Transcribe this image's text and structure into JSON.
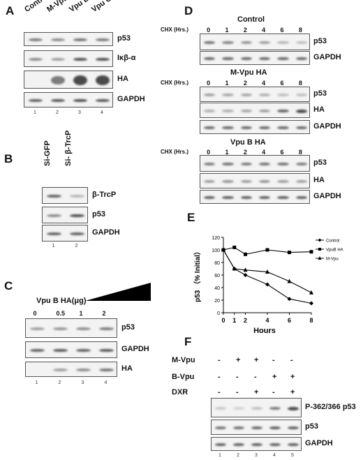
{
  "panels": {
    "A": {
      "letter": "A",
      "columns": [
        "Control",
        "M-Vpu HA",
        "Vpu B HA",
        "Vpu C HA"
      ],
      "rows": [
        "p53",
        "Iκβ-α",
        "HA",
        "GAPDH"
      ],
      "lanes": [
        "1",
        "2",
        "3",
        "4"
      ]
    },
    "B": {
      "letter": "B",
      "columns": [
        "Si-GFP",
        "Si- β-TrcP"
      ],
      "rows": [
        "β-TrcP",
        "p53",
        "GAPDH"
      ],
      "lanes": [
        "1",
        "2"
      ]
    },
    "C": {
      "letter": "C",
      "title": "Vpu B HA(μg)",
      "doses": [
        "0",
        "0.5",
        "1",
        "2"
      ],
      "rows": [
        "p53",
        "GAPDH",
        "HA"
      ],
      "lanes": [
        "1",
        "2",
        "3",
        "4"
      ]
    },
    "D": {
      "letter": "D",
      "cx_label": "CHX (Hrs.)",
      "times": [
        "0",
        "1",
        "2",
        "4",
        "6",
        "8"
      ],
      "groups": [
        {
          "title": "Control",
          "rows": [
            "p53",
            "GAPDH"
          ]
        },
        {
          "title": "M-Vpu HA",
          "rows": [
            "p53",
            "HA",
            "GAPDH"
          ]
        },
        {
          "title": "Vpu B HA",
          "rows": [
            "p53",
            "HA",
            "GAPDH"
          ]
        }
      ]
    },
    "E": {
      "letter": "E"
    },
    "F": {
      "letter": "F",
      "conditions": [
        {
          "label": "M-Vpu",
          "values": [
            "-",
            "+",
            "+",
            "-",
            "-"
          ]
        },
        {
          "label": "B-Vpu",
          "values": [
            "-",
            "-",
            "-",
            "+",
            "+"
          ]
        },
        {
          "label": "DXR",
          "values": [
            "-",
            "-",
            "+",
            "-",
            "+"
          ]
        }
      ],
      "rows": [
        "P-362/366 p53",
        "p53",
        "GAPDH"
      ],
      "lanes": [
        "1",
        "2",
        "3",
        "4",
        "5"
      ]
    }
  },
  "chart_data": {
    "type": "line",
    "x": [
      0,
      1,
      2,
      4,
      6,
      8
    ],
    "xlabel": "Hours",
    "ylabel": "p53 （% Initial）",
    "xlim": [
      0,
      8
    ],
    "ylim": [
      0,
      120
    ],
    "yticks": [
      0,
      20,
      40,
      60,
      80,
      100,
      120
    ],
    "series": [
      {
        "name": "Control",
        "marker": "diamond",
        "values": [
          100,
          70,
          60,
          45,
          22,
          15
        ]
      },
      {
        "name": "VpuB HA",
        "marker": "square",
        "values": [
          100,
          104,
          93,
          100,
          96,
          97
        ]
      },
      {
        "name": "M-Vpu",
        "marker": "triangle",
        "values": [
          100,
          70,
          68,
          65,
          50,
          32
        ]
      }
    ],
    "legend": "right",
    "grid": false
  }
}
